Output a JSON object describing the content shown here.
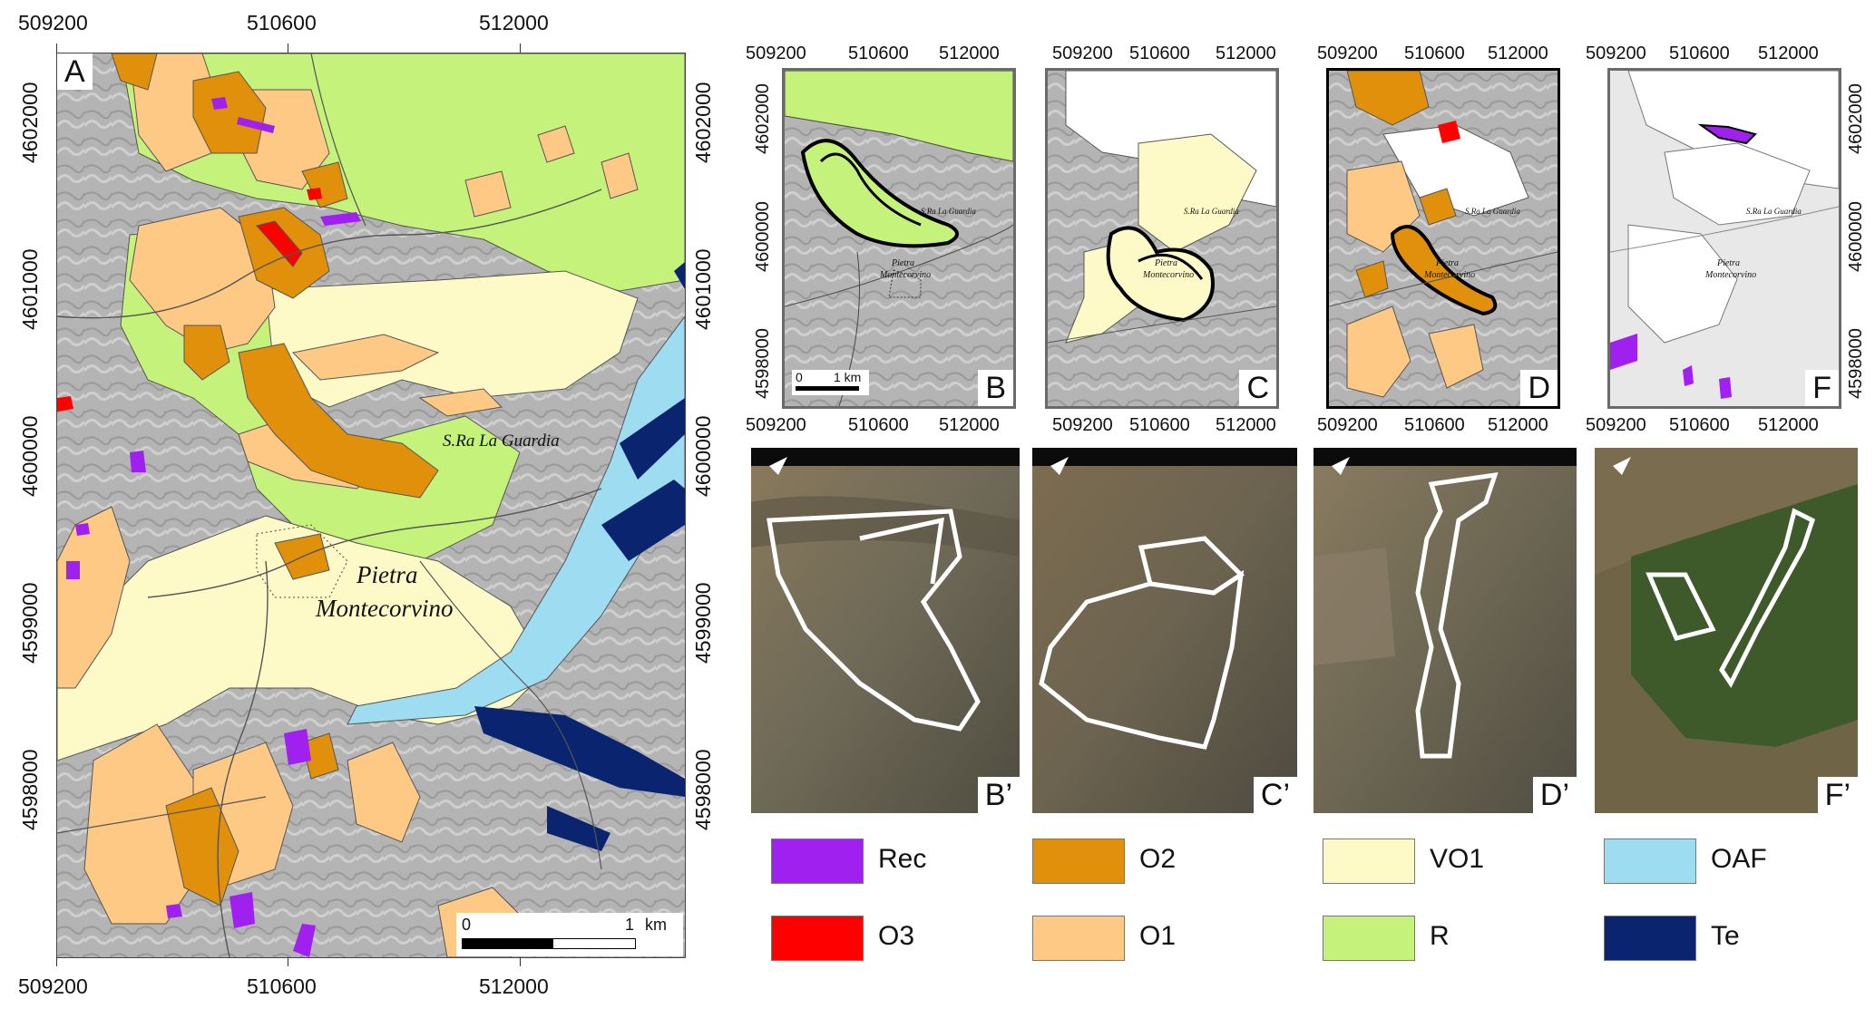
{
  "panel_a": {
    "letter": "A",
    "x_ticks": [
      "509200",
      "510600",
      "512000"
    ],
    "y_ticks": [
      "4602000",
      "4601000",
      "4600000",
      "4599000",
      "4598000"
    ],
    "place_labels": {
      "ridge": "S.Ra La Guardia",
      "town_line1": "Pietra",
      "town_line2": "Montecorvino"
    },
    "scale_bar": {
      "start": "0",
      "end": "1",
      "unit": "km"
    }
  },
  "small_maps": [
    {
      "letter": "B",
      "x_ticks": [
        "509200",
        "510600",
        "512000"
      ],
      "y_ticks": [
        "4602000",
        "4600000",
        "4598000"
      ],
      "scale_start": "0",
      "scale_end": "1 km"
    },
    {
      "letter": "C",
      "x_ticks": [
        "509200",
        "510600",
        "512000"
      ]
    },
    {
      "letter": "D",
      "x_ticks": [
        "509200",
        "510600",
        "512000"
      ]
    },
    {
      "letter": "F",
      "x_ticks": [
        "509200",
        "510600",
        "512000"
      ],
      "y_ticks": [
        "4602000",
        "4600000",
        "4598000"
      ]
    }
  ],
  "small_map_labels": {
    "ridge": "S.Ra La Guardia",
    "town_line1": "Pietra",
    "town_line2": "Montecorvino"
  },
  "photos": [
    {
      "letter": "B’"
    },
    {
      "letter": "C’"
    },
    {
      "letter": "D’"
    },
    {
      "letter": "F’"
    }
  ],
  "legend": [
    {
      "label": "Rec",
      "color": "#a020f0"
    },
    {
      "label": "O3",
      "color": "#ff0000"
    },
    {
      "label": "O2",
      "color": "#e0900a"
    },
    {
      "label": "O1",
      "color": "#fdc984"
    },
    {
      "label": "VO1",
      "color": "#fefac8"
    },
    {
      "label": "R",
      "color": "#c5f27b"
    },
    {
      "label": "OAF",
      "color": "#9edcf2"
    },
    {
      "label": "Te",
      "color": "#0a2470"
    }
  ]
}
